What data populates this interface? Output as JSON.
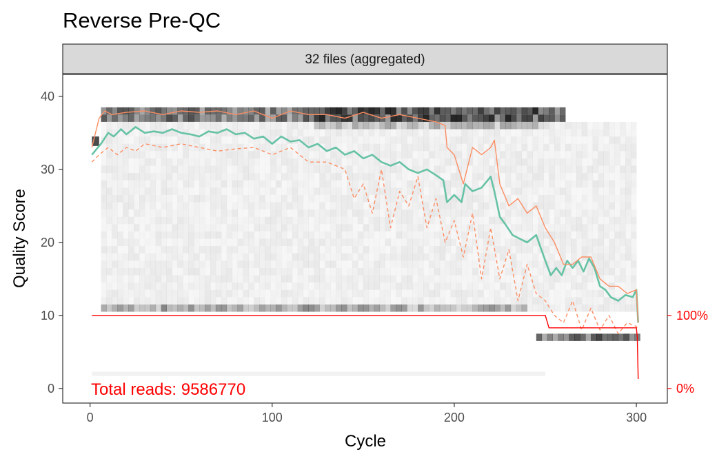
{
  "chart_data": {
    "type": "line",
    "title": "Reverse Pre-QC",
    "facet_label": "32 files (aggregated)",
    "xlabel": "Cycle",
    "ylabel": "Quality Score",
    "xlim": [
      -15,
      317
    ],
    "ylim": [
      -2,
      43
    ],
    "x_ticks": [
      0,
      100,
      200,
      300
    ],
    "y_ticks": [
      0,
      10,
      20,
      30,
      40
    ],
    "grid": false,
    "annotation": "Total reads: 9586770",
    "right_axis": {
      "labels": [
        "100%",
        "0%"
      ],
      "values": [
        10,
        0
      ]
    },
    "colors": {
      "mean": "#66c2a5",
      "quartiles": "#fc8d62",
      "read_fraction": "#ff0000",
      "annotation": "#ff0000",
      "right_axis": "#ff0000"
    },
    "series": [
      {
        "key": "mean",
        "style": "solid",
        "x": [
          1,
          6,
          10,
          13,
          17,
          20,
          25,
          30,
          35,
          40,
          45,
          50,
          55,
          60,
          65,
          70,
          75,
          80,
          85,
          90,
          95,
          100,
          105,
          110,
          115,
          120,
          125,
          130,
          135,
          140,
          145,
          150,
          155,
          160,
          165,
          170,
          175,
          180,
          185,
          190,
          194,
          196,
          200,
          204,
          206,
          210,
          215,
          220,
          222,
          225,
          228,
          232,
          236,
          240,
          245,
          250,
          253,
          256,
          259,
          262,
          265,
          268,
          271,
          274,
          277,
          280,
          283,
          286,
          290,
          294,
          298,
          300,
          301
        ],
        "y": [
          32,
          33.5,
          35,
          34.5,
          35.5,
          34.8,
          35.8,
          35,
          35.2,
          35,
          35.5,
          35,
          34.8,
          34.5,
          35.2,
          35,
          35.5,
          34.8,
          35,
          34.2,
          34.5,
          33.5,
          34.5,
          33.8,
          34,
          33,
          33.5,
          32.5,
          33,
          32,
          32.5,
          31.5,
          32,
          31,
          30.5,
          31,
          30,
          29.5,
          30,
          29.2,
          28.5,
          25.5,
          26.5,
          25.5,
          28,
          27,
          27.5,
          29,
          27,
          23.5,
          22.5,
          21,
          20.5,
          20,
          21,
          17.5,
          15.5,
          16.5,
          15.5,
          17.5,
          16.5,
          17.5,
          16,
          17.8,
          16.5,
          14,
          13.5,
          12.5,
          12,
          12.8,
          12.5,
          13.5,
          9
        ]
      },
      {
        "key": "q75",
        "style": "solid",
        "x": [
          1,
          5,
          8,
          12,
          20,
          30,
          40,
          50,
          60,
          70,
          80,
          90,
          100,
          110,
          120,
          130,
          140,
          150,
          160,
          170,
          180,
          190,
          195,
          196,
          200,
          205,
          210,
          215,
          220,
          222,
          225,
          230,
          235,
          240,
          245,
          250,
          255,
          260,
          265,
          270,
          275,
          280,
          285,
          290,
          295,
          300,
          301
        ],
        "y": [
          33,
          37,
          38,
          37.5,
          37.8,
          38,
          37.5,
          38,
          37.8,
          38,
          37.5,
          38,
          37,
          38,
          37.5,
          37.5,
          37,
          37.8,
          37,
          37.5,
          37,
          36.5,
          36,
          33,
          32,
          28,
          33,
          32,
          33,
          34,
          28,
          25,
          26,
          24,
          25,
          22,
          20,
          17,
          17,
          18,
          18,
          15,
          14,
          14,
          13,
          13.5,
          9
        ]
      },
      {
        "key": "q25",
        "style": "dashed",
        "x": [
          1,
          5,
          10,
          15,
          20,
          25,
          30,
          40,
          50,
          60,
          70,
          80,
          90,
          100,
          110,
          120,
          130,
          140,
          145,
          150,
          155,
          160,
          165,
          170,
          175,
          180,
          185,
          190,
          195,
          200,
          205,
          210,
          215,
          220,
          225,
          230,
          235,
          240,
          245,
          250,
          255,
          260,
          265,
          270,
          275,
          280,
          285,
          290,
          295,
          300,
          301
        ],
        "y": [
          31,
          32,
          33,
          32,
          33,
          32.5,
          33.5,
          33,
          33.5,
          33,
          32.5,
          32.8,
          33,
          32,
          33,
          31,
          31,
          30,
          26,
          28,
          24,
          30,
          22,
          27,
          25,
          29,
          22,
          26,
          20,
          23,
          18,
          24,
          15,
          22,
          15,
          19,
          12,
          17,
          13,
          12,
          10,
          9,
          12,
          8,
          11,
          8,
          10,
          7.5,
          9,
          8.5,
          8
        ]
      },
      {
        "key": "read_fraction",
        "style": "step",
        "x": [
          1,
          250,
          252,
          300,
          300.5,
          301
        ],
        "y": [
          10,
          10,
          8.3,
          8.3,
          7,
          1.3
        ]
      }
    ]
  }
}
